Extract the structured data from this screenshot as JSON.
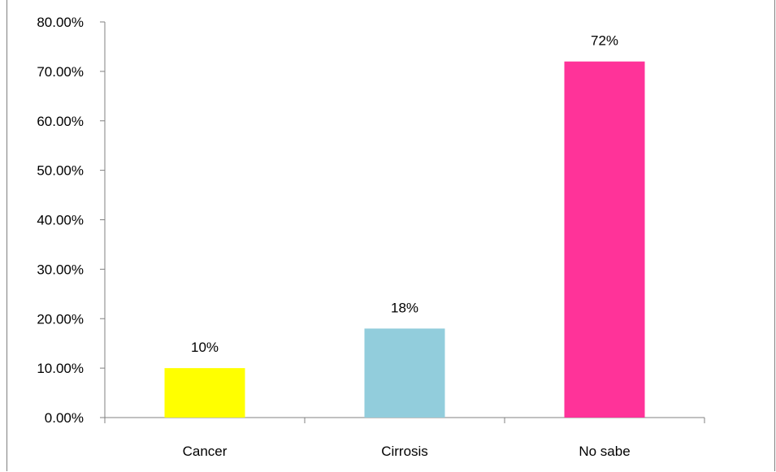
{
  "chart_data": {
    "type": "bar",
    "categories": [
      "Cancer",
      "Cirrosis",
      "No sabe"
    ],
    "values": [
      0.1,
      0.18,
      0.72
    ],
    "data_labels": [
      "10%",
      "18%",
      "72%"
    ],
    "colors": [
      "#FFFF00",
      "#92CDDC",
      "#FF3399"
    ],
    "ylim": [
      0,
      0.8
    ],
    "yticks": [
      0,
      0.1,
      0.2,
      0.3,
      0.4,
      0.5,
      0.6,
      0.7,
      0.8
    ],
    "ytick_labels": [
      "0.00%",
      "10.00%",
      "20.00%",
      "30.00%",
      "40.00%",
      "50.00%",
      "60.00%",
      "70.00%",
      "80.00%"
    ],
    "grid": false,
    "legend": "none",
    "axis_color": "#808080"
  }
}
